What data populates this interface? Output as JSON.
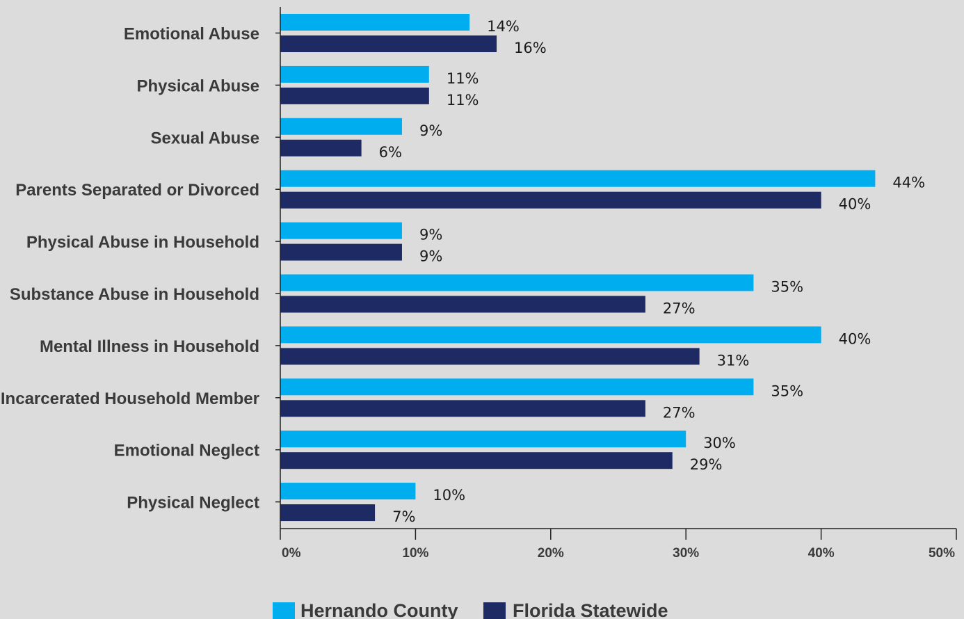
{
  "chart_data": {
    "type": "bar",
    "orientation": "horizontal",
    "categories": [
      "Emotional Abuse",
      "Physical Abuse",
      "Sexual Abuse",
      "Parents Separated or Divorced",
      "Physical Abuse in Household",
      "Substance Abuse in Household",
      "Mental Illness in Household",
      "Incarcerated Household Member",
      "Emotional Neglect",
      "Physical Neglect"
    ],
    "series": [
      {
        "name": "Hernando County",
        "color": "#00aeef",
        "values": [
          14,
          11,
          9,
          44,
          9,
          35,
          40,
          35,
          30,
          10
        ],
        "labels": [
          "14%",
          "11%",
          "9%",
          "44%",
          "9%",
          "35%",
          "40%",
          "35%",
          "30%",
          "10%"
        ]
      },
      {
        "name": "Florida Statewide",
        "color": "#1d2a64",
        "values": [
          16,
          11,
          6,
          40,
          9,
          27,
          31,
          27,
          29,
          7
        ],
        "labels": [
          "16%",
          "11%",
          "6%",
          "40%",
          "9%",
          "27%",
          "31%",
          "27%",
          "29%",
          "7%"
        ]
      }
    ],
    "x_ticks": [
      0,
      10,
      20,
      30,
      40,
      50
    ],
    "x_tick_labels": [
      "0%",
      "10%",
      "20%",
      "30%",
      "40%",
      "50%"
    ],
    "xlim": [
      0,
      50
    ],
    "title": "",
    "xlabel": "",
    "ylabel": "",
    "grid": false,
    "legend_position": "bottom"
  }
}
